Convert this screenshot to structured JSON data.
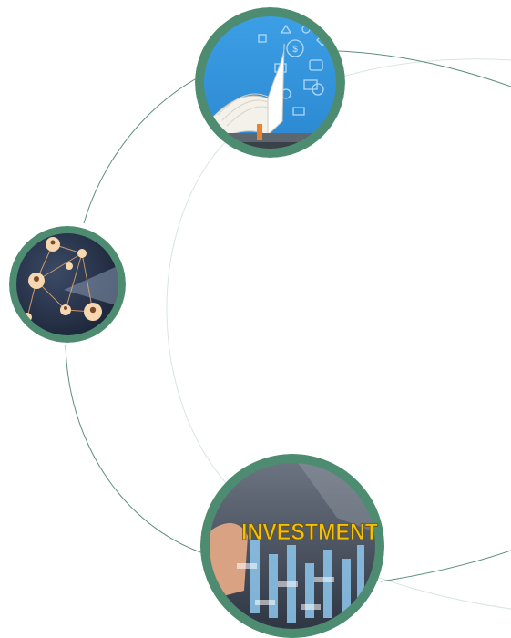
{
  "colors": {
    "ring": "#4e8c72",
    "arc_dark": "#5d8f7b",
    "arc_light": "#d9e5df",
    "sky_blue": "#2f8fd6",
    "invest_gold": "#f2c10a"
  },
  "nodes": [
    {
      "name": "open-book-digital-learning",
      "icon": "book-icon"
    },
    {
      "name": "people-network",
      "icon": "network-icon"
    },
    {
      "name": "investment",
      "icon": "chart-icon",
      "banner_text": "INVESTMENT"
    }
  ]
}
